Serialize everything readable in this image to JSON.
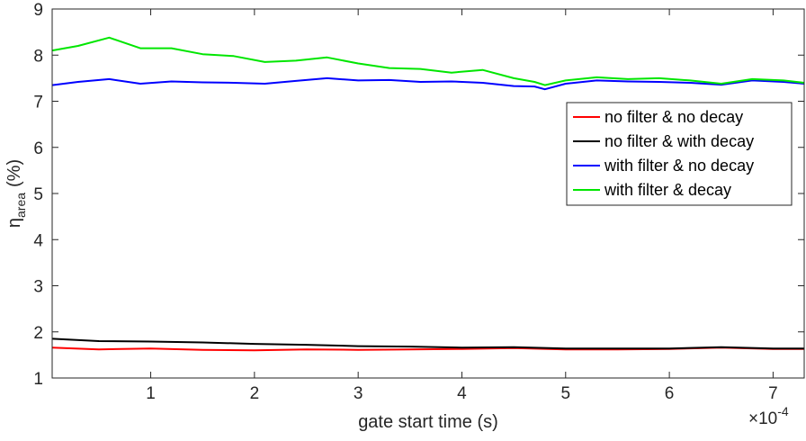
{
  "chart_data": {
    "type": "line",
    "xlabel": "gate start time (s)",
    "ylabel_main": "η",
    "ylabel_sub": "area",
    "ylabel_unit": "(%)",
    "x_multiplier": "×10",
    "x_exponent": "-4",
    "xlim": [
      0.05,
      7.3
    ],
    "ylim": [
      1,
      9
    ],
    "xticks": [
      "1",
      "2",
      "3",
      "4",
      "5",
      "6",
      "7"
    ],
    "yticks": [
      "1",
      "2",
      "3",
      "4",
      "5",
      "6",
      "7",
      "8",
      "9"
    ],
    "grid": false,
    "legend_position": "top-right",
    "series": [
      {
        "name": "no filter & no decay",
        "color": "#ff0000",
        "x": [
          0.05,
          0.5,
          1.0,
          1.5,
          2.0,
          2.5,
          3.0,
          3.5,
          4.0,
          4.5,
          5.0,
          5.5,
          6.0,
          6.5,
          7.0,
          7.3
        ],
        "y": [
          1.66,
          1.62,
          1.64,
          1.61,
          1.6,
          1.62,
          1.61,
          1.62,
          1.63,
          1.65,
          1.62,
          1.62,
          1.63,
          1.66,
          1.63,
          1.63
        ]
      },
      {
        "name": "no filter & with decay",
        "color": "#000000",
        "x": [
          0.05,
          0.5,
          1.0,
          1.5,
          2.0,
          2.5,
          3.0,
          3.5,
          4.0,
          4.5,
          5.0,
          5.5,
          6.0,
          6.5,
          7.0,
          7.3
        ],
        "y": [
          1.85,
          1.8,
          1.79,
          1.77,
          1.74,
          1.72,
          1.69,
          1.68,
          1.66,
          1.67,
          1.64,
          1.64,
          1.64,
          1.67,
          1.64,
          1.64
        ]
      },
      {
        "name": "with filter & no decay",
        "color": "#0000ff",
        "x": [
          0.05,
          0.3,
          0.6,
          0.9,
          1.2,
          1.5,
          1.8,
          2.1,
          2.4,
          2.7,
          3.0,
          3.3,
          3.6,
          3.9,
          4.2,
          4.5,
          4.7,
          4.8,
          5.0,
          5.3,
          5.6,
          5.9,
          6.2,
          6.5,
          6.8,
          7.1,
          7.3
        ],
        "y": [
          7.35,
          7.42,
          7.48,
          7.38,
          7.43,
          7.41,
          7.4,
          7.38,
          7.44,
          7.5,
          7.45,
          7.46,
          7.42,
          7.43,
          7.4,
          7.33,
          7.32,
          7.26,
          7.38,
          7.45,
          7.43,
          7.42,
          7.4,
          7.36,
          7.45,
          7.42,
          7.38
        ]
      },
      {
        "name": "with filter & decay",
        "color": "#00e600",
        "x": [
          0.05,
          0.3,
          0.6,
          0.9,
          1.2,
          1.5,
          1.8,
          2.1,
          2.4,
          2.7,
          3.0,
          3.3,
          3.6,
          3.9,
          4.2,
          4.5,
          4.7,
          4.8,
          5.0,
          5.3,
          5.6,
          5.9,
          6.2,
          6.5,
          6.8,
          7.1,
          7.3
        ],
        "y": [
          8.1,
          8.2,
          8.38,
          8.15,
          8.15,
          8.02,
          7.98,
          7.85,
          7.88,
          7.95,
          7.82,
          7.72,
          7.7,
          7.62,
          7.68,
          7.5,
          7.42,
          7.35,
          7.45,
          7.52,
          7.48,
          7.5,
          7.45,
          7.38,
          7.48,
          7.45,
          7.4
        ]
      }
    ]
  }
}
